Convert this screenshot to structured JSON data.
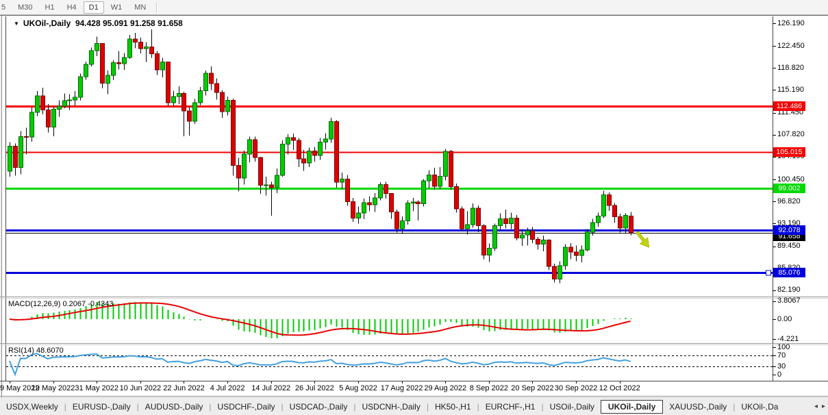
{
  "toolbar": {
    "timeframes": [
      {
        "label": "5",
        "active": false
      },
      {
        "label": "M30",
        "active": false
      },
      {
        "label": "H1",
        "active": false
      },
      {
        "label": "H4",
        "active": false
      },
      {
        "label": "D1",
        "active": true
      },
      {
        "label": "W1",
        "active": false
      },
      {
        "label": "MN",
        "active": false
      }
    ]
  },
  "chart": {
    "symbol_title": "UKOil-,Daily",
    "ohlc_text": "94.428 95.091 91.258 91.658",
    "up_color": "#00cc00",
    "down_color": "#dd0000",
    "price_axis_ticks": [
      "126.190",
      "122.450",
      "118.820",
      "115.190",
      "111.450",
      "107.820",
      "104.190",
      "100.450",
      "96.820",
      "93.190",
      "89.450",
      "85.820",
      "82.190"
    ],
    "levels": [
      {
        "value": 112.486,
        "label": "112.486",
        "color": "#f40000",
        "text_color": "#ffffff",
        "width": 3,
        "selected": false
      },
      {
        "value": 105.015,
        "label": "105.015",
        "color": "#f40000",
        "text_color": "#ffffff",
        "width": 2,
        "selected": false
      },
      {
        "value": 99.002,
        "label": "99.002",
        "color": "#00d800",
        "text_color": "#ffffff",
        "width": 3,
        "selected": false
      },
      {
        "value": 92.078,
        "label": "92.078",
        "color": "#0000dc",
        "text_color": "#ffffff",
        "width": 3,
        "selected": false
      },
      {
        "value": 85.076,
        "label": "85.076",
        "color": "#0000dc",
        "text_color": "#ffffff",
        "width": 3,
        "selected": true
      }
    ],
    "current_price": {
      "value": 91.658,
      "label": "91.658",
      "color": "#000000",
      "text_color": "#ffffff"
    },
    "sell_arrow": {
      "color": "#c3d40e",
      "outline": "#a8b800"
    }
  },
  "macd_panel": {
    "label": "MACD(12,26,9)",
    "values": "0.2067 -0.4343",
    "axis_ticks": [
      "3.8067",
      "0.00",
      "-4.221"
    ],
    "histogram_color": "#00cc00",
    "signal_color": "#e60000"
  },
  "rsi_panel": {
    "label": "RSI(14)",
    "value": "48.6070",
    "axis_ticks": [
      "100",
      "70",
      "30",
      "0"
    ],
    "levels": [
      70,
      30
    ],
    "line_color": "#42a0e0"
  },
  "x_axis": {
    "ticks": [
      {
        "label": "9 May 2022",
        "bar": 0
      },
      {
        "label": "19 May 2022",
        "bar": 8
      },
      {
        "label": "31 May 2022",
        "bar": 16
      },
      {
        "label": "10 Jun 2022",
        "bar": 24
      },
      {
        "label": "22 Jun 2022",
        "bar": 32
      },
      {
        "label": "4 Jul 2022",
        "bar": 40
      },
      {
        "label": "14 Jul 2022",
        "bar": 48
      },
      {
        "label": "26 Jul 2022",
        "bar": 56
      },
      {
        "label": "5 Aug 2022",
        "bar": 64
      },
      {
        "label": "17 Aug 2022",
        "bar": 72
      },
      {
        "label": "29 Aug 2022",
        "bar": 80
      },
      {
        "label": "8 Sep 2022",
        "bar": 88
      },
      {
        "label": "20 Sep 2022",
        "bar": 96
      },
      {
        "label": "30 Sep 2022",
        "bar": 104
      },
      {
        "label": "12 Oct 2022",
        "bar": 112
      }
    ]
  },
  "tabs": {
    "items": [
      {
        "label": "USDX,Weekly",
        "active": false
      },
      {
        "label": "EURUSD-,Daily",
        "active": false
      },
      {
        "label": "AUDUSD-,Daily",
        "active": false
      },
      {
        "label": "USDCHF-,Daily",
        "active": false
      },
      {
        "label": "USDCAD-,Daily",
        "active": false
      },
      {
        "label": "USDCNH-,Daily",
        "active": false
      },
      {
        "label": "HK50-,H1",
        "active": false
      },
      {
        "label": "EURCHF-,H1",
        "active": false
      },
      {
        "label": "USOil-,Daily",
        "active": false
      },
      {
        "label": "UKOil-,Daily",
        "active": true
      },
      {
        "label": "XAUUSD-,Daily",
        "active": false
      },
      {
        "label": "UKOil-,Da",
        "active": false
      }
    ]
  },
  "chart_data": {
    "type": "candlestick",
    "symbol": "UKOil-",
    "timeframe": "Daily",
    "last_bar": {
      "open": 94.428,
      "high": 95.091,
      "low": 91.258,
      "close": 91.658
    },
    "price_range": [
      82.19,
      126.19
    ],
    "horizontal_lines": [
      112.486,
      105.015,
      99.002,
      92.078,
      85.076
    ],
    "indicators": [
      {
        "name": "MACD",
        "params": [
          12,
          26,
          9
        ],
        "current_main": 0.2067,
        "current_signal": -0.4343
      },
      {
        "name": "RSI",
        "params": [
          14
        ],
        "current": 48.607
      }
    ],
    "candles": [
      [
        101.8,
        106.6,
        100.9,
        105.94
      ],
      [
        105.94,
        106.4,
        101.1,
        102.46
      ],
      [
        102.46,
        108.4,
        101.3,
        107.51
      ],
      [
        107.51,
        109.0,
        104.6,
        107.45
      ],
      [
        107.45,
        112.3,
        106.7,
        111.55
      ],
      [
        111.55,
        115.0,
        110.9,
        114.24
      ],
      [
        114.24,
        115.6,
        111.2,
        111.93
      ],
      [
        111.93,
        112.9,
        108.2,
        109.11
      ],
      [
        109.11,
        112.5,
        107.6,
        112.04
      ],
      [
        112.04,
        113.5,
        110.8,
        112.55
      ],
      [
        112.55,
        114.6,
        112.2,
        113.42
      ],
      [
        113.42,
        114.5,
        111.9,
        113.56
      ],
      [
        113.56,
        115.0,
        112.6,
        114.03
      ],
      [
        114.03,
        117.9,
        113.5,
        117.4
      ],
      [
        117.4,
        119.9,
        116.9,
        119.43
      ],
      [
        119.43,
        122.2,
        119.1,
        121.67
      ],
      [
        121.67,
        124.0,
        120.8,
        122.84
      ],
      [
        122.84,
        122.9,
        115.5,
        116.29
      ],
      [
        116.29,
        118.4,
        114.5,
        117.61
      ],
      [
        117.61,
        120.1,
        116.8,
        119.72
      ],
      [
        119.72,
        121.6,
        118.6,
        119.51
      ],
      [
        119.51,
        121.3,
        118.5,
        120.57
      ],
      [
        120.57,
        124.3,
        120.3,
        123.58
      ],
      [
        123.58,
        124.6,
        122.1,
        123.07
      ],
      [
        123.07,
        123.8,
        121.2,
        122.01
      ],
      [
        122.01,
        123.1,
        119.8,
        122.27
      ],
      [
        122.27,
        125.19,
        120.5,
        121.17
      ],
      [
        121.17,
        121.6,
        117.7,
        118.51
      ],
      [
        118.51,
        120.5,
        117.3,
        119.81
      ],
      [
        119.81,
        119.9,
        112.6,
        113.12
      ],
      [
        113.12,
        115.1,
        112.5,
        114.13
      ],
      [
        114.13,
        115.8,
        112.9,
        114.65
      ],
      [
        114.65,
        114.9,
        107.6,
        111.74
      ],
      [
        111.74,
        112.4,
        107.7,
        110.05
      ],
      [
        110.05,
        113.7,
        109.6,
        113.12
      ],
      [
        113.12,
        115.7,
        112.7,
        115.09
      ],
      [
        115.09,
        118.4,
        114.3,
        117.98
      ],
      [
        117.98,
        119.1,
        115.2,
        116.26
      ],
      [
        116.26,
        117.1,
        113.6,
        114.81
      ],
      [
        114.81,
        115.2,
        110.6,
        111.63
      ],
      [
        111.63,
        114.1,
        111.0,
        113.5
      ],
      [
        113.5,
        113.8,
        101.1,
        102.77
      ],
      [
        102.77,
        104.0,
        98.5,
        100.69
      ],
      [
        100.69,
        105.2,
        99.6,
        104.65
      ],
      [
        104.65,
        107.5,
        103.3,
        107.02
      ],
      [
        107.02,
        107.5,
        103.4,
        104.09
      ],
      [
        104.09,
        104.2,
        98.1,
        99.49
      ],
      [
        99.49,
        100.9,
        97.8,
        99.57
      ],
      [
        99.57,
        100.1,
        94.5,
        99.1
      ],
      [
        99.1,
        102.3,
        98.2,
        101.16
      ],
      [
        101.16,
        106.9,
        100.9,
        106.27
      ],
      [
        106.27,
        107.9,
        104.6,
        107.35
      ],
      [
        107.35,
        108.0,
        105.3,
        106.92
      ],
      [
        106.92,
        107.3,
        102.5,
        103.86
      ],
      [
        103.86,
        105.3,
        101.9,
        103.2
      ],
      [
        103.2,
        105.7,
        102.5,
        105.15
      ],
      [
        105.15,
        105.8,
        103.4,
        104.4
      ],
      [
        104.4,
        107.3,
        103.7,
        106.62
      ],
      [
        106.62,
        108.1,
        105.4,
        107.14
      ],
      [
        107.14,
        110.6,
        106.5,
        110.01
      ],
      [
        110.01,
        110.2,
        99.1,
        100.03
      ],
      [
        100.03,
        101.6,
        98.9,
        100.54
      ],
      [
        100.54,
        101.2,
        96.1,
        96.78
      ],
      [
        96.78,
        97.4,
        93.5,
        94.12
      ],
      [
        94.12,
        96.0,
        93.2,
        94.92
      ],
      [
        94.92,
        97.3,
        93.9,
        96.65
      ],
      [
        96.65,
        97.7,
        95.2,
        96.31
      ],
      [
        96.31,
        98.2,
        95.1,
        97.4
      ],
      [
        97.4,
        100.0,
        97.0,
        99.6
      ],
      [
        99.6,
        100.1,
        97.3,
        98.15
      ],
      [
        98.15,
        98.2,
        94.0,
        95.1
      ],
      [
        95.1,
        95.5,
        91.7,
        92.34
      ],
      [
        92.34,
        94.4,
        91.5,
        93.65
      ],
      [
        93.65,
        97.0,
        93.0,
        96.59
      ],
      [
        96.59,
        97.4,
        95.2,
        96.72
      ],
      [
        96.72,
        97.0,
        93.7,
        96.48
      ],
      [
        96.48,
        100.5,
        96.0,
        100.22
      ],
      [
        100.22,
        102.0,
        99.0,
        101.22
      ],
      [
        101.22,
        102.4,
        98.8,
        99.34
      ],
      [
        99.34,
        102.5,
        98.9,
        100.99
      ],
      [
        100.99,
        105.5,
        100.3,
        105.09
      ],
      [
        105.09,
        105.3,
        98.8,
        99.31
      ],
      [
        99.31,
        99.8,
        95.0,
        95.64
      ],
      [
        95.64,
        96.0,
        91.9,
        92.36
      ],
      [
        92.36,
        95.2,
        91.4,
        93.02
      ],
      [
        93.02,
        96.5,
        92.5,
        95.74
      ],
      [
        95.74,
        96.2,
        91.8,
        92.83
      ],
      [
        92.83,
        93.1,
        87.3,
        88.0
      ],
      [
        88.0,
        89.9,
        86.9,
        89.15
      ],
      [
        89.15,
        93.2,
        88.7,
        92.84
      ],
      [
        92.84,
        94.9,
        92.1,
        94.0
      ],
      [
        94.0,
        95.5,
        92.4,
        93.17
      ],
      [
        93.17,
        95.0,
        92.3,
        94.1
      ],
      [
        94.1,
        94.6,
        90.4,
        90.84
      ],
      [
        90.84,
        92.3,
        89.5,
        91.35
      ],
      [
        91.35,
        92.5,
        89.6,
        92.0
      ],
      [
        92.0,
        92.6,
        90.0,
        90.62
      ],
      [
        90.62,
        91.0,
        88.9,
        89.83
      ],
      [
        89.83,
        91.2,
        88.6,
        90.46
      ],
      [
        90.46,
        90.6,
        85.5,
        86.15
      ],
      [
        86.15,
        86.6,
        83.5,
        84.06
      ],
      [
        84.06,
        87.0,
        83.4,
        86.27
      ],
      [
        86.27,
        89.8,
        85.6,
        89.32
      ],
      [
        89.32,
        90.0,
        87.3,
        88.49
      ],
      [
        88.49,
        89.6,
        87.0,
        87.96
      ],
      [
        87.96,
        89.6,
        86.8,
        88.86
      ],
      [
        88.86,
        92.3,
        88.6,
        91.8
      ],
      [
        91.8,
        94.0,
        91.2,
        93.37
      ],
      [
        93.37,
        95.0,
        92.7,
        94.42
      ],
      [
        94.42,
        98.6,
        94.1,
        97.92
      ],
      [
        97.92,
        98.3,
        95.3,
        96.19
      ],
      [
        96.19,
        96.6,
        93.3,
        94.29
      ],
      [
        94.29,
        94.8,
        91.7,
        92.45
      ],
      [
        92.45,
        94.9,
        91.6,
        94.57
      ],
      [
        94.428,
        95.091,
        91.258,
        91.658
      ]
    ]
  }
}
